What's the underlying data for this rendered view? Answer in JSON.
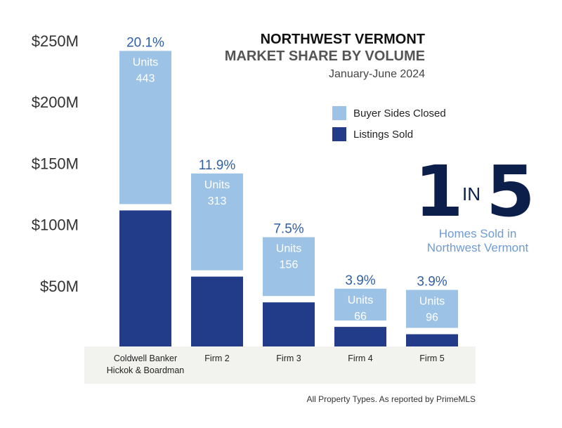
{
  "title": {
    "line1": "NORTHWEST VERMONT",
    "line2": "MARKET SHARE BY VOLUME",
    "line3": "January-June 2024"
  },
  "legend": [
    {
      "label": "Buyer Sides Closed",
      "color": "#9cc3e6"
    },
    {
      "label": "Listings Sold",
      "color": "#233c8a"
    }
  ],
  "stat": {
    "numerator": "1",
    "connector": "IN",
    "denominator": "5",
    "caption_line1": "Homes Sold in",
    "caption_line2": "Northwest Vermont"
  },
  "footnote": "All Property Types. As reported by PrimeMLS",
  "chart_data": {
    "type": "bar",
    "stacked": true,
    "ylim": [
      0,
      250
    ],
    "y_ticks": [
      {
        "value": 50,
        "label": "$50M"
      },
      {
        "value": 100,
        "label": "$100M"
      },
      {
        "value": 150,
        "label": "$150M"
      },
      {
        "value": 200,
        "label": "$200M"
      },
      {
        "value": 250,
        "label": "$250M"
      }
    ],
    "categories": [
      [
        "Coldwell Banker",
        "Hickok & Boardman"
      ],
      [
        "Firm 2"
      ],
      [
        "Firm 3"
      ],
      [
        "Firm 4"
      ],
      [
        "Firm 5"
      ]
    ],
    "series": [
      {
        "name": "Listings Sold",
        "color": "#233c8a",
        "values": [
          111,
          57,
          36,
          16,
          10
        ]
      },
      {
        "name": "Buyer Sides Closed",
        "color": "#9cc3e6",
        "values": [
          125,
          79,
          48,
          26,
          31
        ]
      }
    ],
    "share_labels": [
      "20.1%",
      "11.9%",
      "7.5%",
      "3.9%",
      "3.9%"
    ],
    "units_label": "Units",
    "units": [
      "443",
      "313",
      "156",
      "66",
      "96"
    ],
    "grid": false
  }
}
